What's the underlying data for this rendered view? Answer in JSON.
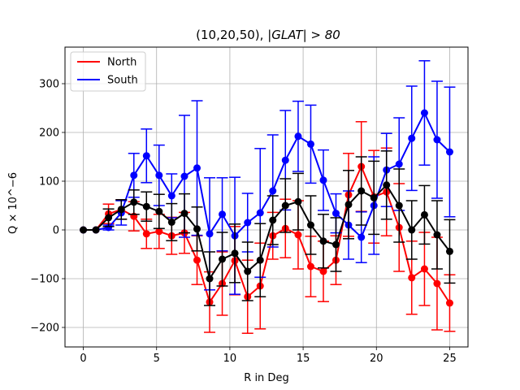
{
  "chart_data": {
    "type": "line",
    "title": "(10,20,50), |GLAT| > 80",
    "title_prefix": "(10,20,50), ",
    "title_math": "|GLAT| > 80",
    "xlabel": "R in Deg",
    "ylabel": "Q × 10^−6",
    "xlim": [
      -1.25,
      26.25
    ],
    "ylim": [
      -240,
      375
    ],
    "xticks": [
      0,
      5,
      10,
      15,
      20,
      25
    ],
    "yticks": [
      -200,
      -100,
      0,
      100,
      200,
      300
    ],
    "xtick_labels": [
      "0",
      "5",
      "10",
      "15",
      "20",
      "25"
    ],
    "ytick_labels": [
      "−200",
      "−100",
      "0",
      "100",
      "200",
      "300"
    ],
    "grid": true,
    "legend_position": "top-left",
    "x": [
      0,
      0.86,
      1.72,
      2.59,
      3.45,
      4.31,
      5.17,
      6.03,
      6.9,
      7.76,
      8.62,
      9.48,
      10.34,
      11.21,
      12.07,
      12.93,
      13.79,
      14.66,
      15.52,
      16.38,
      17.24,
      18.1,
      18.97,
      19.83,
      20.69,
      21.55,
      22.41,
      23.28,
      24.14,
      25.0
    ],
    "series": [
      {
        "name": "North",
        "color": "#ff0000",
        "values": [
          0,
          0,
          33,
          42,
          28,
          -8,
          -3,
          -12,
          -6,
          -62,
          -148,
          -110,
          -63,
          -137,
          -115,
          -12,
          3,
          -10,
          -75,
          -85,
          -62,
          72,
          130,
          68,
          78,
          5,
          -98,
          -80,
          -110,
          -150
        ],
        "errors": [
          0,
          0,
          20,
          20,
          30,
          30,
          35,
          38,
          42,
          50,
          62,
          65,
          70,
          75,
          88,
          48,
          60,
          70,
          62,
          62,
          50,
          85,
          92,
          95,
          90,
          90,
          75,
          75,
          95,
          58
        ]
      },
      {
        "name": "South",
        "color": "#0000ff",
        "values": [
          0,
          0,
          5,
          35,
          112,
          152,
          112,
          70,
          110,
          127,
          -8,
          32,
          -12,
          15,
          35,
          80,
          143,
          192,
          176,
          102,
          34,
          10,
          -15,
          50,
          123,
          135,
          188,
          240,
          185,
          160
        ],
        "errors": [
          0,
          0,
          5,
          25,
          45,
          55,
          62,
          45,
          125,
          138,
          115,
          75,
          120,
          60,
          132,
          115,
          102,
          72,
          80,
          62,
          40,
          70,
          52,
          100,
          75,
          95,
          107,
          107,
          120,
          133
        ]
      },
      {
        "name": "",
        "color": "#000000",
        "values": [
          0,
          0,
          25,
          42,
          57,
          48,
          38,
          16,
          34,
          2,
          -100,
          -60,
          -48,
          -85,
          -62,
          20,
          50,
          58,
          10,
          -23,
          -30,
          52,
          80,
          66,
          92,
          50,
          0,
          31,
          -10,
          -44
        ],
        "errors": [
          0,
          0,
          18,
          20,
          25,
          30,
          35,
          38,
          40,
          45,
          55,
          55,
          60,
          60,
          75,
          50,
          55,
          58,
          60,
          55,
          55,
          70,
          70,
          75,
          70,
          75,
          60,
          60,
          70,
          65
        ]
      }
    ]
  }
}
